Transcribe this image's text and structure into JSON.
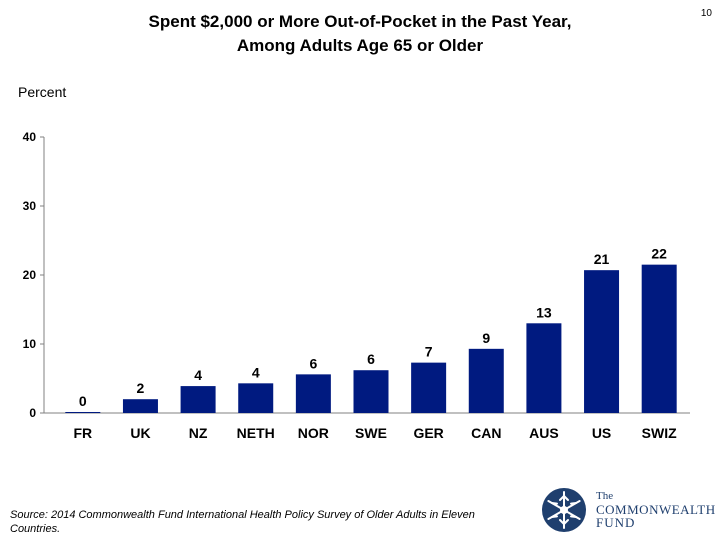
{
  "title": {
    "line1": "Spent $2,000 or More Out-of-Pocket in the Past Year,",
    "line2": "Among Adults Age 65 or Older"
  },
  "page_number": "10",
  "source": {
    "text": "Source: 2014 Commonwealth Fund International Health Policy Survey of Older Adults in Eleven Countries."
  },
  "logo": {
    "line1": "The",
    "line2": "COMMONWEALTH",
    "line3": "FUND",
    "icon": "snowflake-emblem-icon"
  },
  "colors": {
    "bar": "#001a80",
    "axis": "#808080",
    "logo_blue": "#1f3f6e"
  },
  "chart_data": {
    "type": "bar",
    "title": "Spent $2,000 or More Out-of-Pocket in the Past Year, Among Adults Age 65 or Older",
    "ylabel": "Percent",
    "xlabel": "",
    "categories": [
      "FR",
      "UK",
      "NZ",
      "NETH",
      "NOR",
      "SWE",
      "GER",
      "CAN",
      "AUS",
      "US",
      "SWIZ"
    ],
    "values": [
      0,
      2,
      4,
      4,
      6,
      6,
      7,
      9,
      13,
      21,
      22
    ],
    "bar_heights": [
      0.1,
      2,
      3.9,
      4.3,
      5.6,
      6.2,
      7.3,
      9.3,
      13,
      20.7,
      21.5
    ],
    "yticks": [
      0,
      10,
      20,
      30,
      40
    ],
    "ylim": [
      0,
      40
    ],
    "grid": false,
    "legend": "none"
  }
}
